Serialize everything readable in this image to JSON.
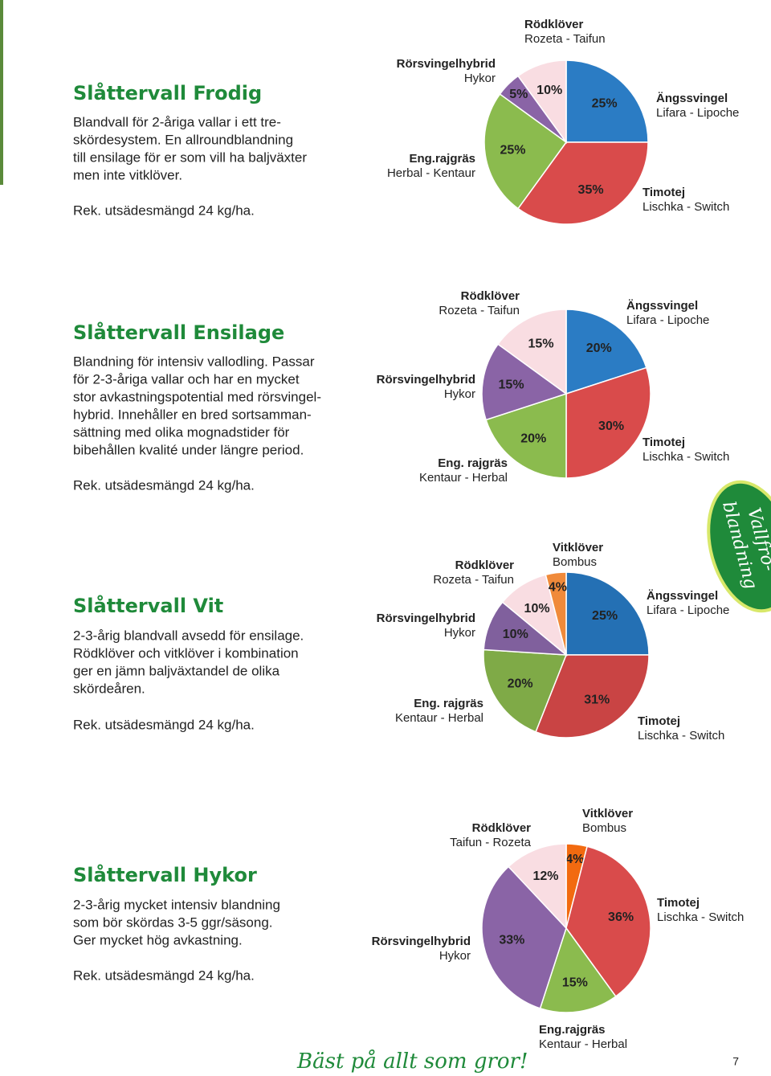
{
  "sections": [
    {
      "title": "Slåttervall Frodig",
      "lines": [
        "Blandvall för 2-åriga vallar i ett tre-",
        "skördesystem. En allroundblandning",
        "till ensilage för er som vill ha baljväxter",
        "men inte vitklöver."
      ],
      "rate": "Rek. utsädesmängd 24 kg/ha."
    },
    {
      "title": "Slåttervall Ensilage",
      "lines": [
        "Blandning för intensiv vallodling. Passar",
        "för 2-3-åriga vallar och har en mycket",
        "stor avkastningspotential med rörsvingel-",
        "hybrid. Innehåller en bred sortsamman-",
        "sättning med olika mognadstider för",
        "bibehållen kvalité under längre period."
      ],
      "rate": "Rek. utsädesmängd 24 kg/ha."
    },
    {
      "title": "Slåttervall Vit",
      "lines": [
        "2-3-årig blandvall avsedd för ensilage.",
        "Rödklöver och vitklöver i kombination",
        "ger en jämn baljväxtandel de olika",
        "skördeåren."
      ],
      "rate": "Rek. utsädesmängd 24 kg/ha."
    },
    {
      "title": "Slåttervall Hykor",
      "lines": [
        "2-3-årig mycket intensiv blandning",
        "som bör skördas 3-5 ggr/säsong.",
        "Ger mycket hög avkastning."
      ],
      "rate": "Rek. utsädesmängd 24 kg/ha."
    }
  ],
  "chart_data": [
    {
      "type": "pie",
      "categories": [
        "Ängssvingel",
        "Timotej",
        "Eng.rajgräs",
        "Rörsvingelhybrid",
        "Rödklöver"
      ],
      "varieties": [
        "Lifara - Lipoche",
        "Lischka - Switch",
        "Herbal - Kentaur",
        "Hykor",
        "Rozeta - Taifun"
      ],
      "values": [
        25,
        35,
        25,
        5,
        10
      ],
      "value_labels": [
        "25%",
        "35%",
        "25%",
        "5%",
        "10%"
      ],
      "colors": [
        "#2b7cc4",
        "#d94b4b",
        "#8bbb4e",
        "#8a64a6",
        "#f9dde2"
      ]
    },
    {
      "type": "pie",
      "categories": [
        "Ängssvingel",
        "Timotej",
        "Eng. rajgräs",
        "Rörsvingelhybrid",
        "Rödklöver"
      ],
      "varieties": [
        "Lifara - Lipoche",
        "Lischka - Switch",
        "Kentaur - Herbal",
        "Hykor",
        "Rozeta - Taifun"
      ],
      "values": [
        20,
        30,
        20,
        15,
        15
      ],
      "value_labels": [
        "20%",
        "30%",
        "20%",
        "15%",
        "15%"
      ],
      "colors": [
        "#2b7cc4",
        "#d94b4b",
        "#8bbb4e",
        "#8a64a6",
        "#f9dde2"
      ]
    },
    {
      "type": "pie",
      "categories": [
        "Ängssvingel",
        "Timotej",
        "Eng. rajgräs",
        "Rörsvingelhybrid",
        "Rödklöver",
        "Vitklöver"
      ],
      "varieties": [
        "Lifara - Lipoche",
        "Lischka - Switch",
        "Kentaur - Herbal",
        "Hykor",
        "Rozeta - Taifun",
        "Bombus"
      ],
      "values": [
        25,
        31,
        20,
        10,
        10,
        4
      ],
      "value_labels": [
        "25%",
        "31%",
        "20%",
        "10%",
        "10%",
        "4%"
      ],
      "colors": [
        "#2470b4",
        "#c94444",
        "#7faa47",
        "#80609d",
        "#f9dde2",
        "#f08a3a"
      ]
    },
    {
      "type": "pie",
      "categories": [
        "Vitklöver",
        "Timotej",
        "Eng.rajgräs",
        "Rörsvingelhybrid",
        "Rödklöver"
      ],
      "varieties": [
        "Bombus",
        "Lischka - Switch",
        "Kentaur - Herbal",
        "Hykor",
        "Taifun - Rozeta"
      ],
      "values": [
        4,
        36,
        15,
        33,
        12
      ],
      "value_labels": [
        "4%",
        "36%",
        "15%",
        "33%",
        "12%"
      ],
      "colors": [
        "#f26a10",
        "#d94b4b",
        "#8bbb4e",
        "#8a64a6",
        "#f9dde2"
      ]
    }
  ],
  "badge": [
    "Vallfrö-",
    "blandning"
  ],
  "footer": {
    "slogan": "Bäst på allt som gror!",
    "page": "7"
  }
}
